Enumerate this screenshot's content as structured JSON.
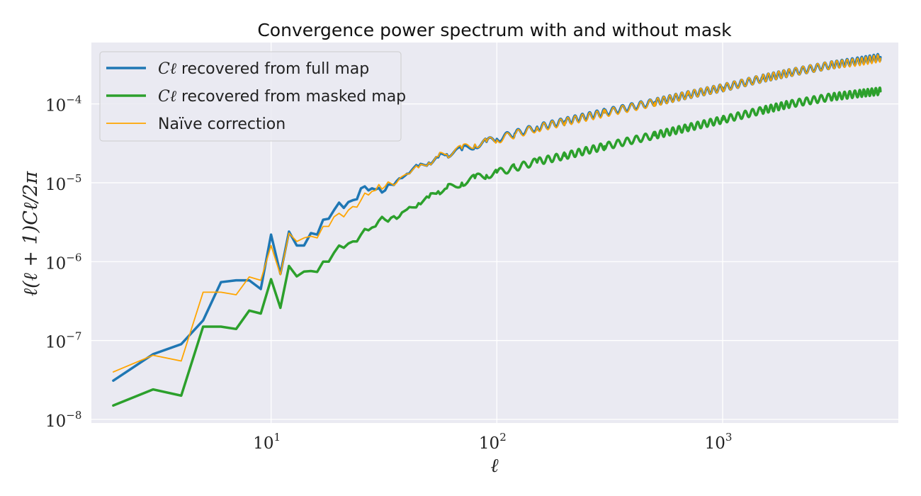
{
  "chart_data": {
    "type": "line",
    "title": "Convergence power spectrum with and without mask",
    "xlabel": "ℓ",
    "ylabel": "ℓ(ℓ + 1)Cℓ/2π",
    "xscale": "log",
    "yscale": "log",
    "xlim": [
      1.6,
      6000
    ],
    "ylim": [
      9e-09,
      0.0006
    ],
    "grid": true,
    "legend_position": "top-left",
    "x_ticks": [
      {
        "value": 10,
        "base": "10",
        "exp": "1"
      },
      {
        "value": 100,
        "base": "10",
        "exp": "2"
      },
      {
        "value": 1000,
        "base": "10",
        "exp": "3"
      }
    ],
    "y_ticks": [
      {
        "value": 1e-08,
        "base": "10",
        "exp": "−8"
      },
      {
        "value": 1e-07,
        "base": "10",
        "exp": "−7"
      },
      {
        "value": 1e-06,
        "base": "10",
        "exp": "−6"
      },
      {
        "value": 1e-05,
        "base": "10",
        "exp": "−5"
      },
      {
        "value": 0.0001,
        "base": "10",
        "exp": "−4"
      }
    ],
    "series": [
      {
        "name": "Cℓ recovered from full map",
        "legend_math": "Cℓ",
        "legend_text": " recovered from full map",
        "color": "#1f77b4",
        "width": 3.5,
        "x": [
          2,
          3,
          4,
          5,
          6,
          7,
          8,
          9,
          10,
          11,
          12,
          13,
          14,
          15,
          16,
          17,
          18,
          19,
          20,
          21,
          22,
          23,
          24,
          25,
          26,
          27,
          28,
          29,
          30,
          32,
          34,
          36,
          38,
          40,
          45,
          50,
          55,
          60,
          70,
          80,
          90,
          100,
          120,
          150,
          200,
          300,
          500,
          700,
          1000,
          1500,
          2000,
          3000,
          4000,
          5000
        ],
        "y": [
          3.1e-08,
          6.7e-08,
          9e-08,
          1.8e-07,
          5.5e-07,
          5.8e-07,
          5.8e-07,
          4.5e-07,
          2.2e-06,
          7e-07,
          2.4e-06,
          1.6e-06,
          1.6e-06,
          2.3e-06,
          2.2e-06,
          3.4e-06,
          3.5e-06,
          4.5e-06,
          5.6e-06,
          4.8e-06,
          5.7e-06,
          6e-06,
          6.2e-06,
          8.5e-06,
          9e-06,
          8e-06,
          8.5e-06,
          8.2e-06,
          8.6e-06,
          8e-06,
          9.5e-06,
          1.05e-05,
          1.15e-05,
          1.3e-05,
          1.6e-05,
          1.8e-05,
          2.1e-05,
          2.3e-05,
          2.6e-05,
          3e-05,
          3.3e-05,
          3.6e-05,
          4.2e-05,
          5e-05,
          6e-05,
          7.8e-05,
          0.000105,
          0.00013,
          0.00016,
          0.00021,
          0.00025,
          0.00031,
          0.00035,
          0.00039
        ]
      },
      {
        "name": "Cℓ recovered from masked map",
        "legend_math": "Cℓ",
        "legend_text": " recovered from masked map",
        "color": "#2ca02c",
        "width": 3.5,
        "x": [
          2,
          3,
          4,
          5,
          6,
          7,
          8,
          9,
          10,
          11,
          12,
          13,
          14,
          15,
          16,
          17,
          18,
          19,
          20,
          21,
          22,
          23,
          24,
          25,
          26,
          27,
          28,
          29,
          30,
          32,
          34,
          36,
          38,
          40,
          45,
          50,
          55,
          60,
          70,
          80,
          90,
          100,
          120,
          150,
          200,
          300,
          500,
          700,
          1000,
          1500,
          2000,
          3000,
          4000,
          5000
        ],
        "y": [
          1.5e-08,
          2.4e-08,
          2e-08,
          1.5e-07,
          1.5e-07,
          1.4e-07,
          2.4e-07,
          2.2e-07,
          6e-07,
          2.6e-07,
          8.8e-07,
          6.5e-07,
          7.5e-07,
          7.6e-07,
          7.4e-07,
          1e-06,
          1e-06,
          1.3e-06,
          1.6e-06,
          1.5e-06,
          1.7e-06,
          1.8e-06,
          1.8e-06,
          2.2e-06,
          2.6e-06,
          2.5e-06,
          2.7e-06,
          2.8e-06,
          3.3e-06,
          3.4e-06,
          3.6e-06,
          3.5e-06,
          4.2e-06,
          4.6e-06,
          5.5e-06,
          6.5e-06,
          7.8e-06,
          8.5e-06,
          1e-05,
          1.15e-05,
          1.25e-05,
          1.35e-05,
          1.55e-05,
          1.85e-05,
          2.2e-05,
          2.9e-05,
          4e-05,
          5e-05,
          6.3e-05,
          8.3e-05,
          0.0001,
          0.000122,
          0.000135,
          0.000145
        ]
      },
      {
        "name": "Naïve correction",
        "legend_text": "Naïve correction",
        "color": "#ffa500",
        "width": 1.8,
        "x": [
          2,
          3,
          4,
          5,
          6,
          7,
          8,
          9,
          10,
          11,
          12,
          13,
          14,
          15,
          16,
          17,
          18,
          19,
          20,
          21,
          22,
          23,
          24,
          25,
          26,
          27,
          28,
          29,
          30,
          32,
          34,
          36,
          38,
          40,
          45,
          50,
          55,
          60,
          70,
          80,
          90,
          100,
          120,
          150,
          200,
          300,
          500,
          700,
          1000,
          1500,
          2000,
          3000,
          4000,
          5000
        ],
        "y": [
          4e-08,
          6.5e-08,
          5.5e-08,
          4.1e-07,
          4.1e-07,
          3.8e-07,
          6.4e-07,
          5.8e-07,
          1.6e-06,
          6.8e-07,
          2.3e-06,
          1.8e-06,
          2e-06,
          2.1e-06,
          2e-06,
          2.8e-06,
          2.8e-06,
          3.7e-06,
          4.1e-06,
          3.7e-06,
          4.5e-06,
          5e-06,
          4.9e-06,
          6e-06,
          7.4e-06,
          7e-06,
          7.8e-06,
          8e-06,
          9.5e-06,
          9e-06,
          9.8e-06,
          1e-05,
          1.2e-05,
          1.3e-05,
          1.55e-05,
          1.8e-05,
          2.15e-05,
          2.3e-05,
          2.7e-05,
          3.1e-05,
          3.3e-05,
          3.5e-05,
          4.1e-05,
          4.9e-05,
          5.9e-05,
          7.6e-05,
          0.000104,
          0.00013,
          0.00016,
          0.00021,
          0.00025,
          0.00031,
          0.00034,
          0.00038
        ]
      }
    ]
  }
}
